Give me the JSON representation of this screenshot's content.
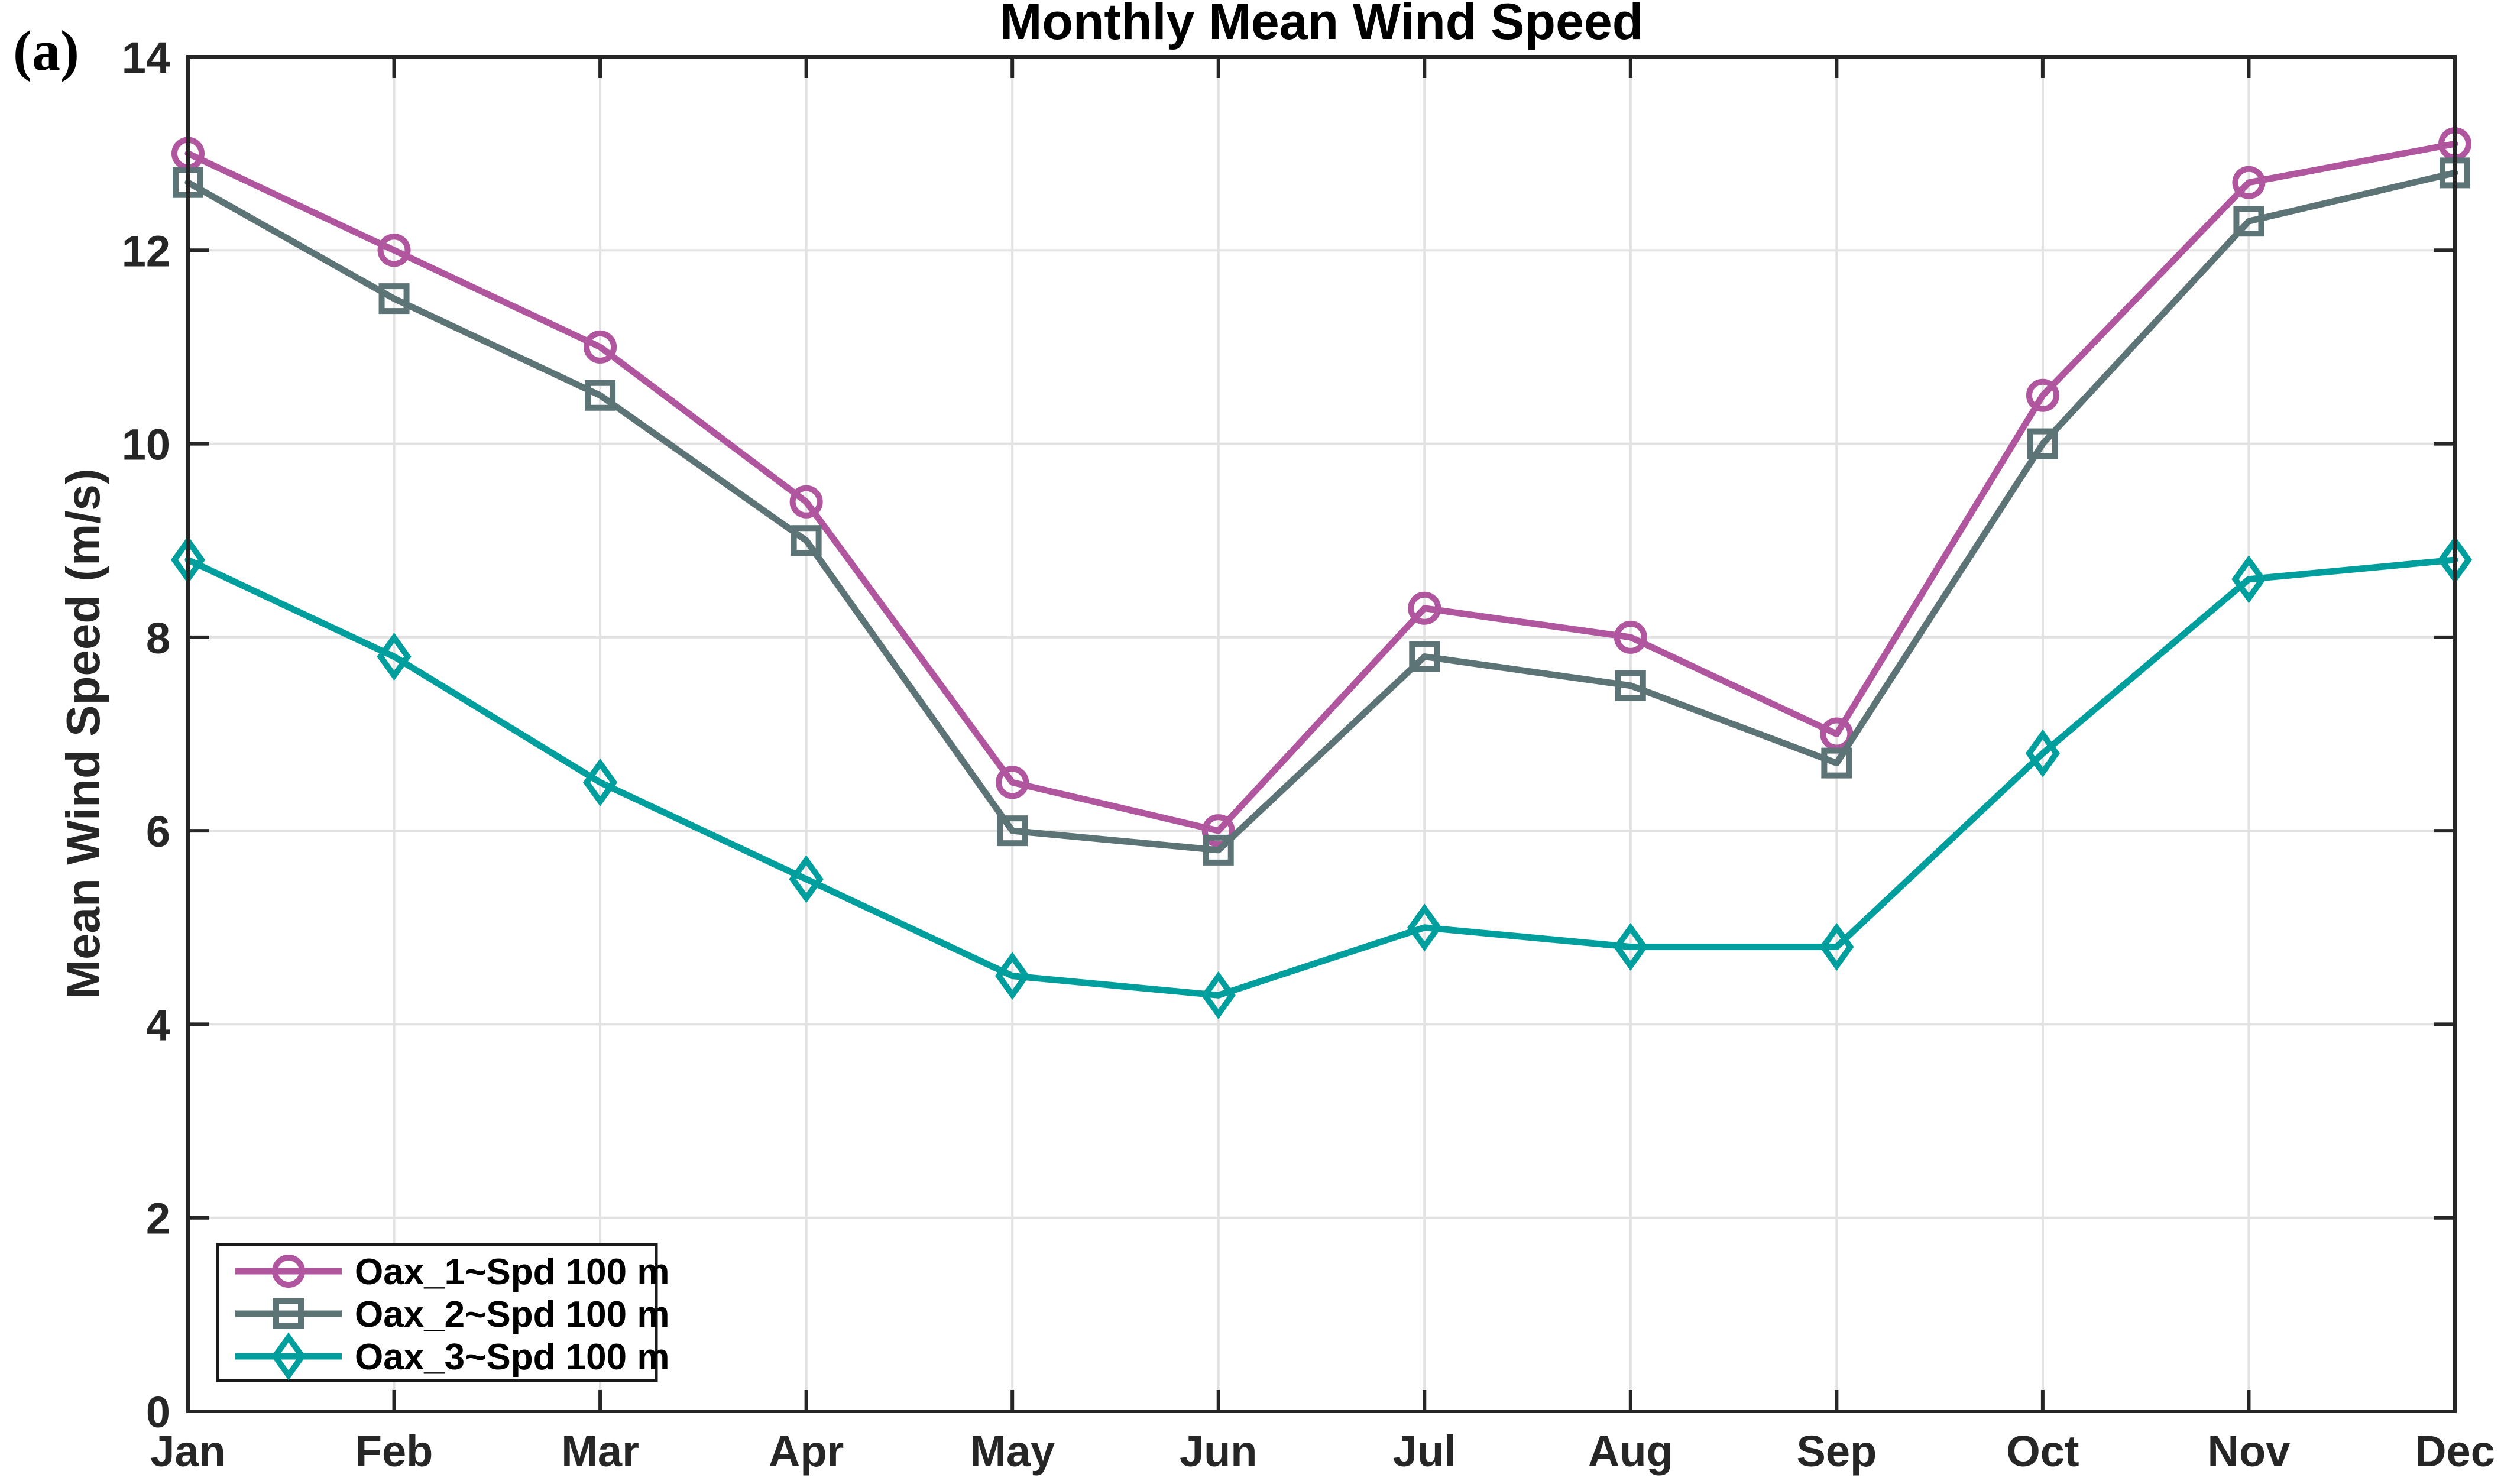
{
  "chart_data": {
    "type": "line",
    "title": "Monthly Mean Wind Speed",
    "panel_label": "(a)",
    "xlabel": "",
    "ylabel": "Mean Wind Speed (m/s)",
    "categories": [
      "Jan",
      "Feb",
      "Mar",
      "Apr",
      "May",
      "Jun",
      "Jul",
      "Aug",
      "Sep",
      "Oct",
      "Nov",
      "Dec"
    ],
    "ylim": [
      0,
      14
    ],
    "yticks": [
      0,
      2,
      4,
      6,
      8,
      10,
      12,
      14
    ],
    "grid": true,
    "legend_position": "lower-left",
    "series": [
      {
        "name": "Oax_1~Spd 100 m",
        "marker": "circle",
        "color": "#b0569e",
        "values": [
          13.0,
          12.0,
          11.0,
          9.4,
          6.5,
          6.0,
          8.3,
          8.0,
          7.0,
          10.5,
          12.7,
          13.1
        ]
      },
      {
        "name": "Oax_2~Spd 100 m",
        "marker": "square",
        "color": "#5d7477",
        "values": [
          12.7,
          11.5,
          10.5,
          9.0,
          6.0,
          5.8,
          7.8,
          7.5,
          6.7,
          10.0,
          12.3,
          12.8
        ]
      },
      {
        "name": "Oax_3~Spd 100 m",
        "marker": "diamond",
        "color": "#009f9d",
        "values": [
          8.8,
          7.8,
          6.5,
          5.5,
          4.5,
          4.3,
          5.0,
          4.8,
          4.8,
          6.8,
          8.6,
          8.8
        ]
      }
    ],
    "colors": {
      "axis": "#262626",
      "grid": "#e2e2e2",
      "title": "#000000",
      "tick_text": "#262626",
      "legend_border": "#1a1a1a",
      "legend_background": "#ffffff"
    }
  }
}
